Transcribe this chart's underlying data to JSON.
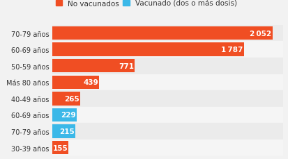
{
  "categories": [
    "70-79 años",
    "60-69 años",
    "50-59 años",
    "Más 80 años",
    "40-49 años",
    "60-69 años",
    "70-79 años",
    "30-39 años"
  ],
  "values": [
    2052,
    1787,
    771,
    439,
    265,
    229,
    215,
    155
  ],
  "colors": [
    "#f04e23",
    "#f04e23",
    "#f04e23",
    "#f04e23",
    "#f04e23",
    "#3bb8e8",
    "#3bb8e8",
    "#f04e23"
  ],
  "legend_labels": [
    "No vacunados",
    "Vacunado (dos o más dosis)"
  ],
  "legend_colors": [
    "#f04e23",
    "#3bb8e8"
  ],
  "value_color": "white",
  "bg_main": "#f2f2f2",
  "bg_row_even": "#ebebeb",
  "bg_row_odd": "#f5f5f5",
  "bar_height": 0.82,
  "max_value": 2150,
  "label_fontsize": 7.0,
  "value_fontsize": 7.5,
  "legend_fontsize": 7.5
}
